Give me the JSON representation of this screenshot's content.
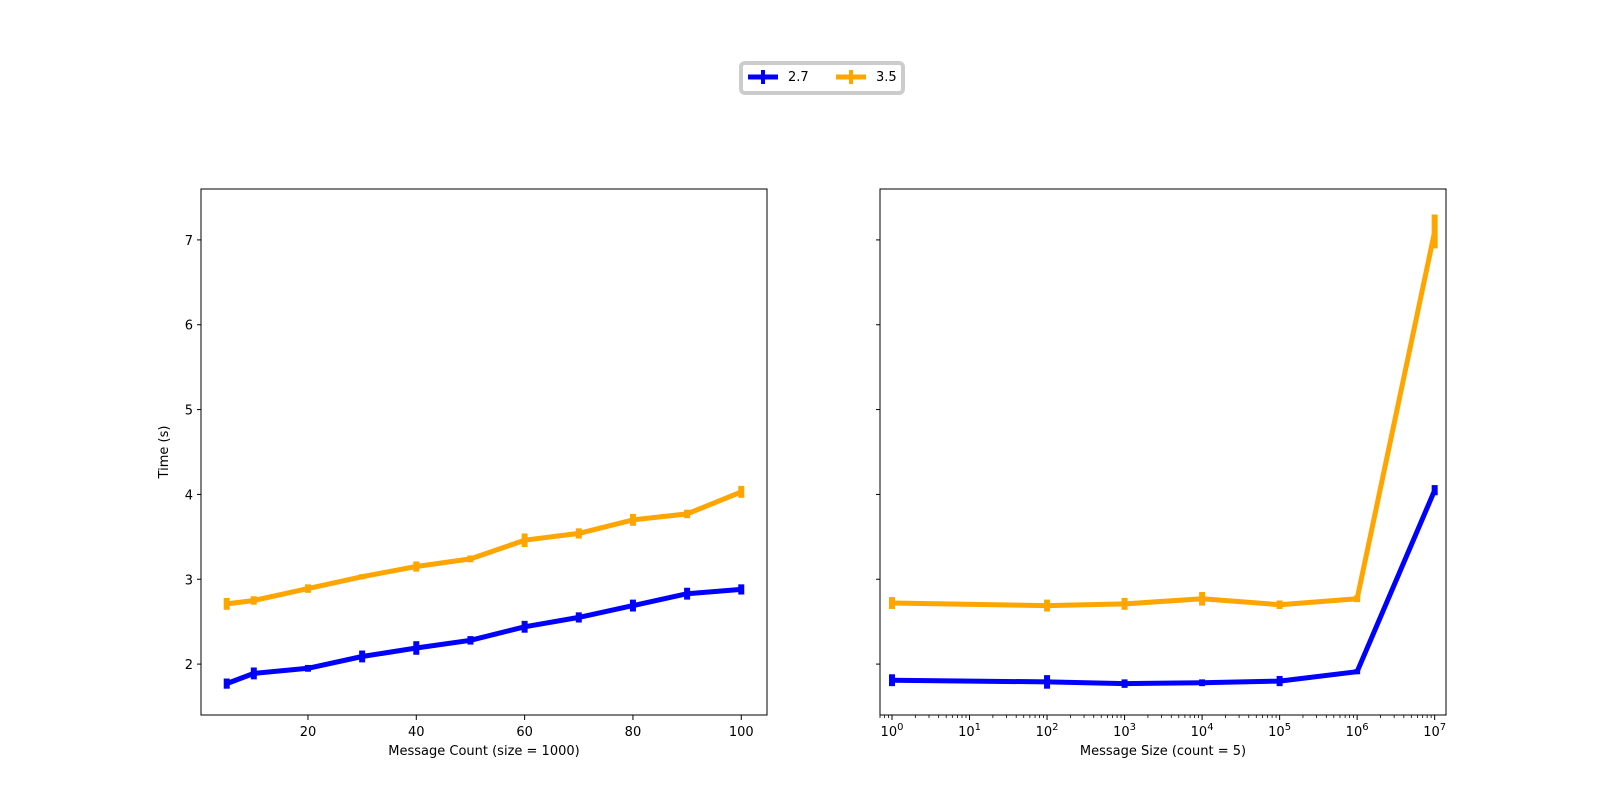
{
  "colors": {
    "series_2_7": "#0000ff",
    "series_3_5": "#ffa500",
    "axes": "#000000",
    "legend_border": "#cccccc"
  },
  "legend": {
    "placement": "top-center",
    "entries": [
      {
        "label": "2.7",
        "color": "#0000ff"
      },
      {
        "label": "3.5",
        "color": "#ffa500"
      }
    ]
  },
  "chart_data": [
    {
      "type": "line",
      "title": "",
      "xlabel": "Message Count (size = 1000)",
      "ylabel": "Time (s)",
      "xscale": "linear",
      "xlim": [
        0.25,
        104.75
      ],
      "ylim": [
        1.4,
        7.6
      ],
      "xticks": [
        20,
        40,
        60,
        80,
        100
      ],
      "xtick_labels": [
        "20",
        "40",
        "60",
        "80",
        "100"
      ],
      "yticks": [
        2,
        3,
        4,
        5,
        6,
        7
      ],
      "ytick_labels": [
        "2",
        "3",
        "4",
        "5",
        "6",
        "7"
      ],
      "grid": false,
      "error_bars": true,
      "x": [
        5,
        10,
        20,
        30,
        40,
        50,
        60,
        70,
        80,
        90,
        100
      ],
      "series": [
        {
          "name": "2.7",
          "color": "#0000ff",
          "values": [
            1.77,
            1.89,
            1.95,
            2.09,
            2.19,
            2.28,
            2.44,
            2.55,
            2.69,
            2.83,
            2.88
          ],
          "errors": [
            0.06,
            0.07,
            0.04,
            0.07,
            0.08,
            0.05,
            0.07,
            0.06,
            0.07,
            0.07,
            0.06
          ]
        },
        {
          "name": "3.5",
          "color": "#ffa500",
          "values": [
            2.71,
            2.75,
            2.89,
            3.03,
            3.15,
            3.24,
            3.46,
            3.54,
            3.7,
            3.77,
            4.03
          ],
          "errors": [
            0.07,
            0.05,
            0.05,
            0.03,
            0.06,
            0.04,
            0.08,
            0.06,
            0.07,
            0.05,
            0.07
          ]
        }
      ]
    },
    {
      "type": "line",
      "title": "",
      "xlabel": "Message Size (count = 5)",
      "ylabel": "",
      "xscale": "log",
      "xlim": [
        0.7,
        14000000
      ],
      "ylim": [
        1.4,
        7.6
      ],
      "xticks": [
        1,
        10,
        100,
        1000,
        10000,
        100000,
        1000000,
        10000000
      ],
      "xtick_labels": [
        [
          "10",
          "0"
        ],
        [
          "10",
          "1"
        ],
        [
          "10",
          "2"
        ],
        [
          "10",
          "3"
        ],
        [
          "10",
          "4"
        ],
        [
          "10",
          "5"
        ],
        [
          "10",
          "6"
        ],
        [
          "10",
          "7"
        ]
      ],
      "yticks": [
        2,
        3,
        4,
        5,
        6,
        7
      ],
      "ytick_labels": [],
      "grid": false,
      "error_bars": true,
      "x": [
        1,
        100,
        1000,
        10000,
        100000,
        1000000,
        10000000
      ],
      "series": [
        {
          "name": "2.7",
          "color": "#0000ff",
          "values": [
            1.81,
            1.79,
            1.77,
            1.78,
            1.8,
            1.91,
            4.05
          ],
          "errors": [
            0.07,
            0.08,
            0.05,
            0.04,
            0.06,
            0.03,
            0.06
          ]
        },
        {
          "name": "3.5",
          "color": "#ffa500",
          "values": [
            2.72,
            2.69,
            2.71,
            2.77,
            2.7,
            2.77,
            7.1
          ],
          "errors": [
            0.07,
            0.07,
            0.07,
            0.08,
            0.05,
            0.04,
            0.2
          ]
        }
      ]
    }
  ]
}
